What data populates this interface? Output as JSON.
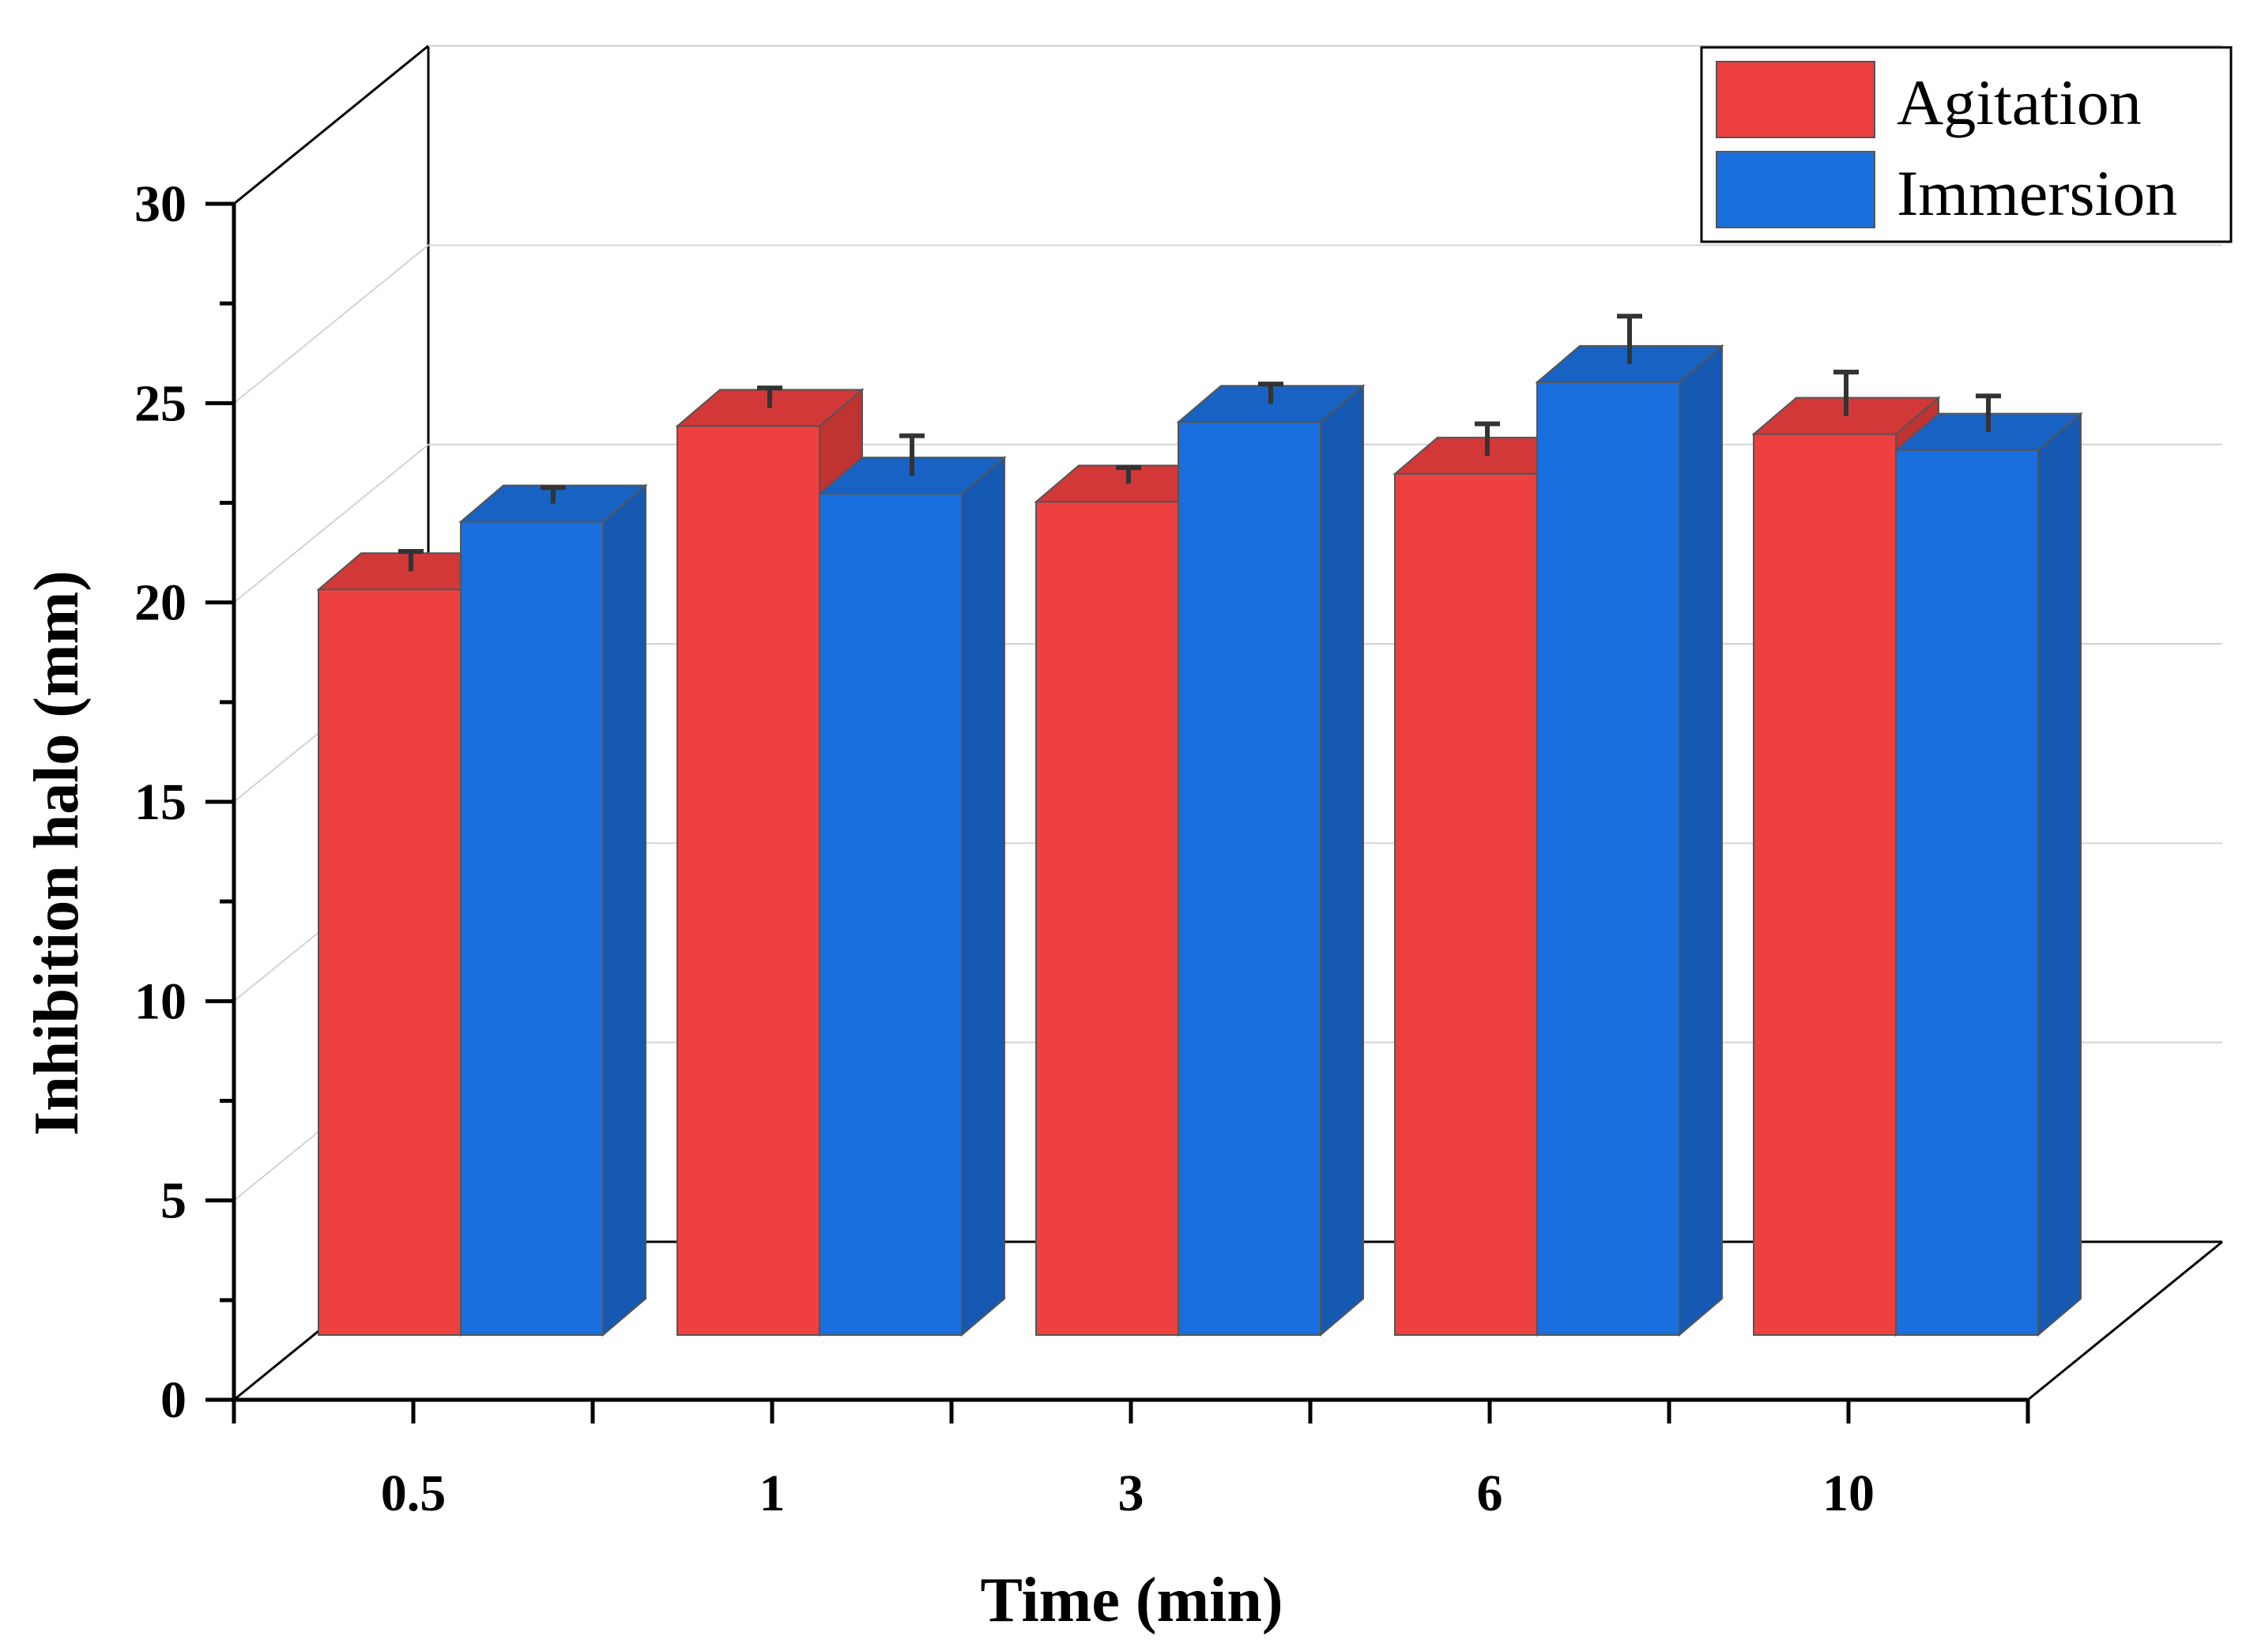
{
  "chart_data": {
    "type": "bar",
    "title": "",
    "xlabel": "Time (min)",
    "ylabel": "Inhibition halo (mm)",
    "categories": [
      "0.5",
      "1",
      "3",
      "6",
      "10"
    ],
    "yticks": [
      "0",
      "5",
      "10",
      "15",
      "20",
      "25",
      "30"
    ],
    "ylim": [
      0,
      30
    ],
    "grid": true,
    "legend_position": "top-right",
    "series": [
      {
        "name": "Agitation",
        "color": "#ef4040",
        "values": [
          18.7,
          22.8,
          20.9,
          21.6,
          22.6
        ],
        "errors": [
          0.5,
          0.5,
          0.4,
          0.8,
          1.1
        ]
      },
      {
        "name": "Immersion",
        "color": "#1a6fde",
        "values": [
          20.4,
          21.1,
          22.9,
          23.9,
          22.2
        ],
        "errors": [
          0.4,
          1.0,
          0.5,
          1.2,
          0.9
        ]
      }
    ]
  }
}
